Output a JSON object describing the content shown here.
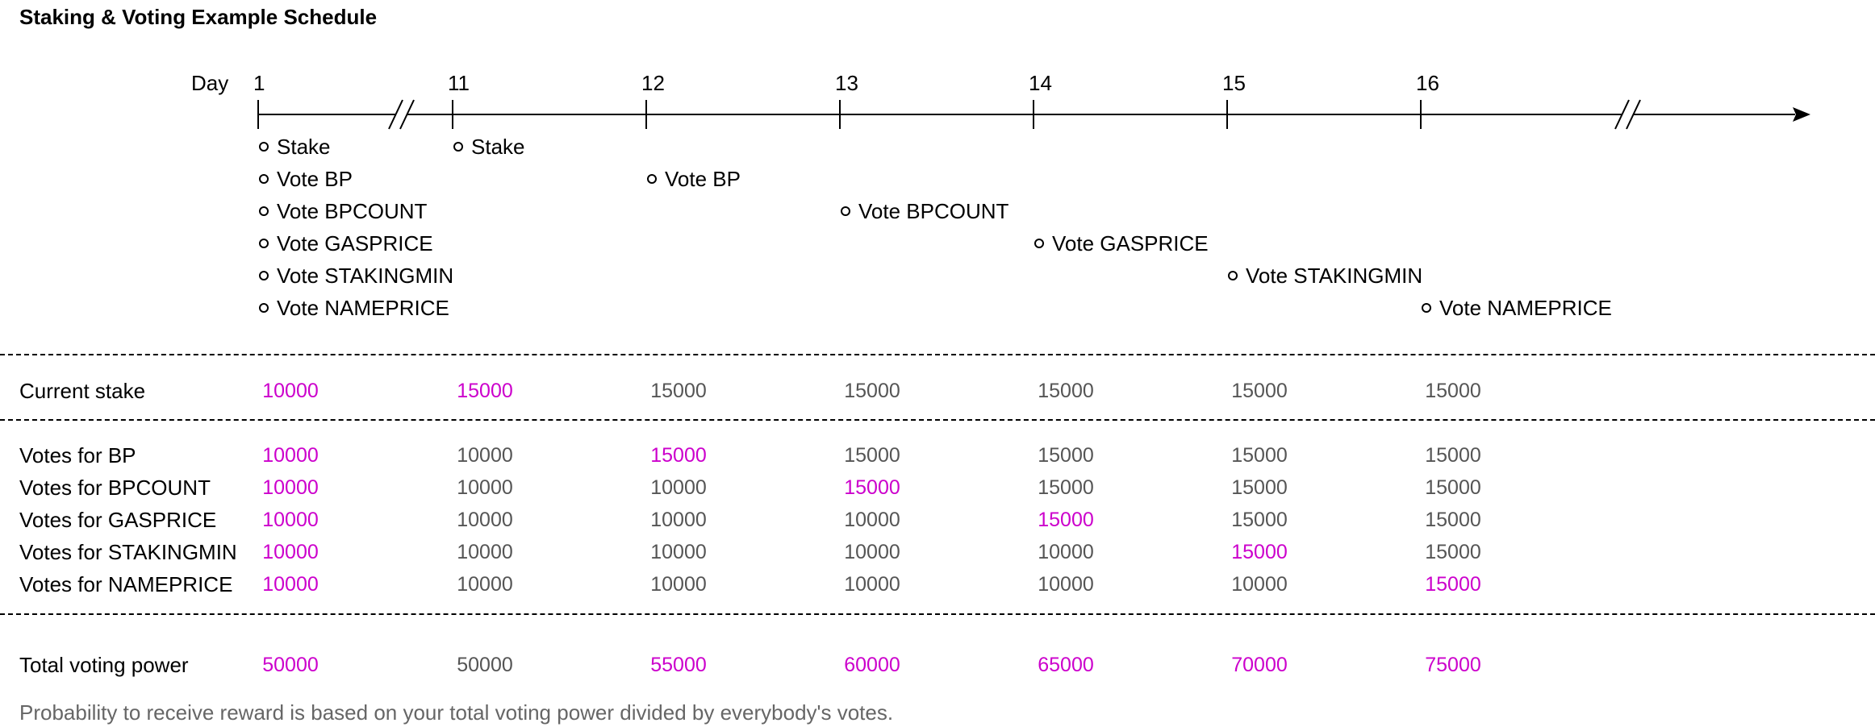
{
  "title": "Staking & Voting Example Schedule",
  "timeline": {
    "day_label": "Day",
    "days": [
      {
        "day": "1",
        "events": [
          "Stake",
          "Vote BP",
          "Vote BPCOUNT",
          "Vote GASPRICE",
          "Vote STAKINGMIN",
          "Vote NAMEPRICE"
        ]
      },
      {
        "day": "11",
        "events": [
          "Stake"
        ]
      },
      {
        "day": "12",
        "events": [
          "Vote BP"
        ]
      },
      {
        "day": "13",
        "events": [
          "Vote BPCOUNT"
        ]
      },
      {
        "day": "14",
        "events": [
          "Vote GASPRICE"
        ]
      },
      {
        "day": "15",
        "events": [
          "Vote STAKINGMIN"
        ]
      },
      {
        "day": "16",
        "events": [
          "Vote NAMEPRICE"
        ]
      }
    ]
  },
  "colors": {
    "highlight": "#CC00CC",
    "normal": "#555555",
    "footnote": "#666666"
  },
  "groups": [
    {
      "rows": [
        {
          "label": "Current stake",
          "values": [
            "10000",
            "15000",
            "15000",
            "15000",
            "15000",
            "15000",
            "15000"
          ],
          "highlight": [
            0,
            1
          ]
        }
      ]
    },
    {
      "rows": [
        {
          "label": "Votes for BP",
          "values": [
            "10000",
            "10000",
            "15000",
            "15000",
            "15000",
            "15000",
            "15000"
          ],
          "highlight": [
            0,
            2
          ]
        },
        {
          "label": "Votes for BPCOUNT",
          "values": [
            "10000",
            "10000",
            "10000",
            "15000",
            "15000",
            "15000",
            "15000"
          ],
          "highlight": [
            0,
            3
          ]
        },
        {
          "label": "Votes for GASPRICE",
          "values": [
            "10000",
            "10000",
            "10000",
            "10000",
            "15000",
            "15000",
            "15000"
          ],
          "highlight": [
            0,
            4
          ]
        },
        {
          "label": "Votes for STAKINGMIN",
          "values": [
            "10000",
            "10000",
            "10000",
            "10000",
            "10000",
            "15000",
            "15000"
          ],
          "highlight": [
            0,
            5
          ]
        },
        {
          "label": "Votes for NAMEPRICE",
          "values": [
            "10000",
            "10000",
            "10000",
            "10000",
            "10000",
            "10000",
            "15000"
          ],
          "highlight": [
            0,
            6
          ]
        }
      ]
    },
    {
      "rows": [
        {
          "label": "Total voting power",
          "values": [
            "50000",
            "50000",
            "55000",
            "60000",
            "65000",
            "70000",
            "75000"
          ],
          "highlight": [
            0,
            2,
            3,
            4,
            5,
            6
          ]
        }
      ]
    }
  ],
  "footnote": "Probability to receive reward is based on your total voting power divided by everybody's votes."
}
